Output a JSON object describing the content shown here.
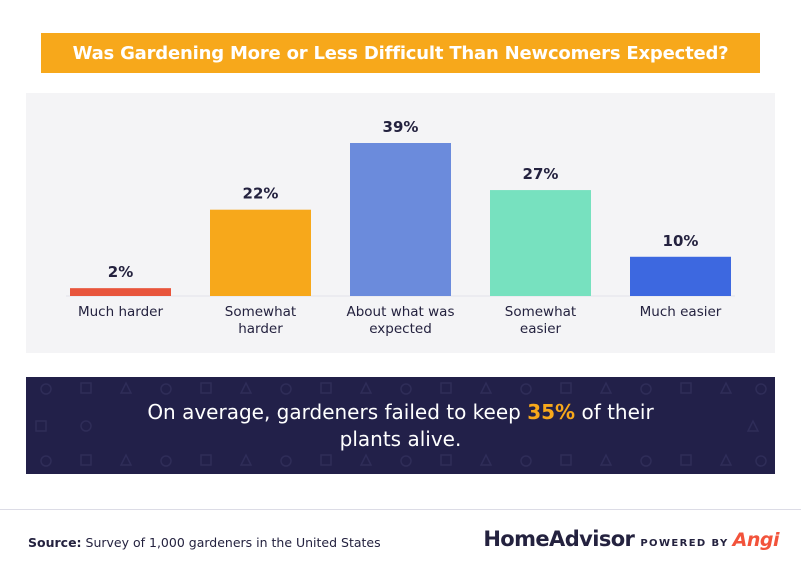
{
  "title": "Was Gardening More or Less Difficult Than Newcomers Expected?",
  "chart_data": {
    "type": "bar",
    "categories": [
      "Much harder",
      "Somewhat harder",
      "About what was expected",
      "Somewhat easier",
      "Much easier"
    ],
    "category_lines": [
      [
        "Much harder"
      ],
      [
        "Somewhat",
        "harder"
      ],
      [
        "About what was",
        "expected"
      ],
      [
        "Somewhat",
        "easier"
      ],
      [
        "Much easier"
      ]
    ],
    "values": [
      2,
      22,
      39,
      27,
      10
    ],
    "value_labels": [
      "2%",
      "22%",
      "39%",
      "27%",
      "10%"
    ],
    "colors": [
      "#e8553c",
      "#f7a81b",
      "#6b8bdc",
      "#77e1bf",
      "#3d68e0"
    ],
    "ylim": [
      0,
      39
    ],
    "grid": false,
    "xlabel": "",
    "ylabel": ""
  },
  "callout": {
    "before": "On average, gardeners failed to keep ",
    "highlight": "35%",
    "after": " of their plants alive."
  },
  "source": {
    "label": "Source:",
    "text": " Survey of 1,000 gardeners in the United States"
  },
  "brand": {
    "name": "HomeAdvisor",
    "powered_by": "POWERED BY",
    "partner": "Angi"
  },
  "colors": {
    "accent": "#f7a81b",
    "navy": "#222049",
    "panel": "#f4f4f6"
  }
}
